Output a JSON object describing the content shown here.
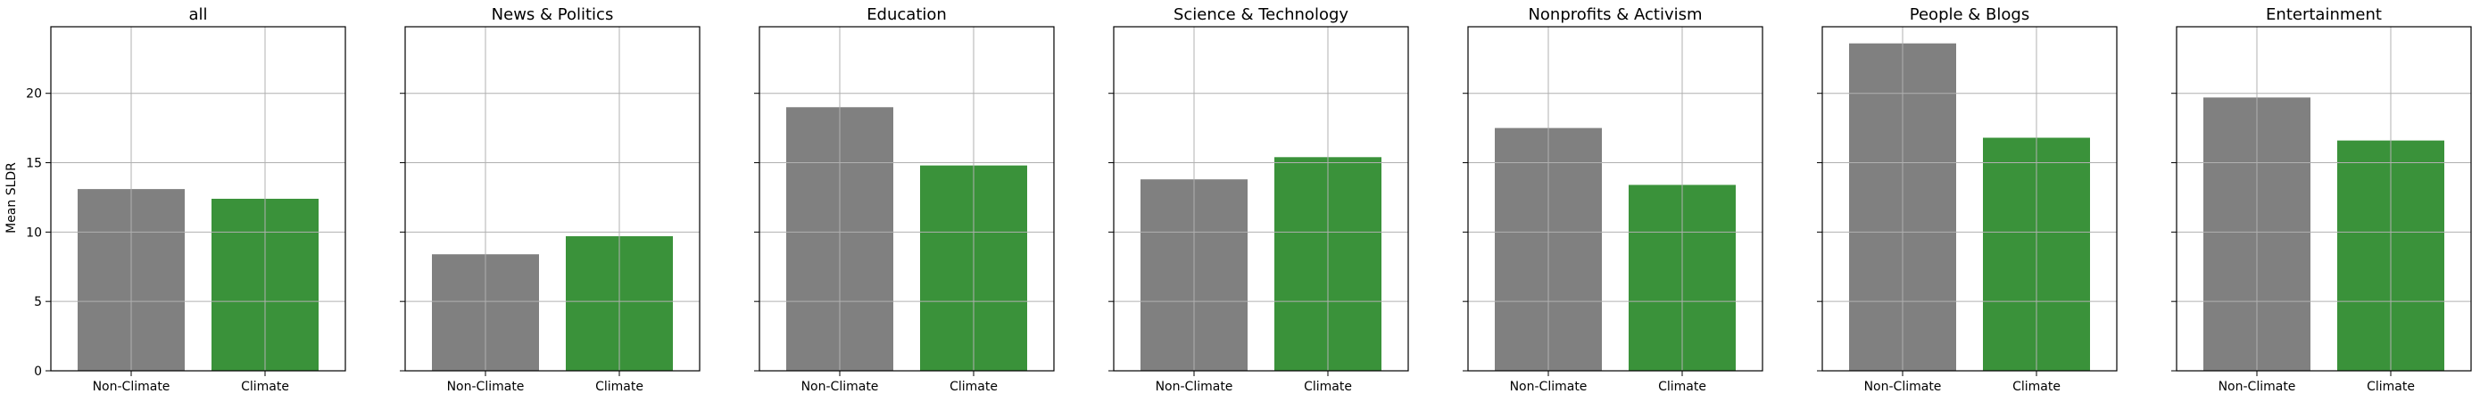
{
  "figure": {
    "ylabel": "Mean SLDR",
    "yticks": [
      "0",
      "5",
      "10",
      "15",
      "20"
    ]
  },
  "colors": {
    "non_climate": "#808080",
    "climate": "#3a923a",
    "grid": "#b0b0b0",
    "axes": "#000000"
  },
  "chart_data": [
    {
      "type": "bar",
      "title": "all",
      "categories": [
        "Non-Climate",
        "Climate"
      ],
      "values": [
        13.1,
        12.4
      ],
      "ylim": [
        0,
        24.8
      ],
      "grid": true
    },
    {
      "type": "bar",
      "title": "News & Politics",
      "categories": [
        "Non-Climate",
        "Climate"
      ],
      "values": [
        8.4,
        9.7
      ],
      "ylim": [
        0,
        24.8
      ],
      "grid": true
    },
    {
      "type": "bar",
      "title": "Education",
      "categories": [
        "Non-Climate",
        "Climate"
      ],
      "values": [
        19.0,
        14.8
      ],
      "ylim": [
        0,
        24.8
      ],
      "grid": true
    },
    {
      "type": "bar",
      "title": "Science & Technology",
      "categories": [
        "Non-Climate",
        "Climate"
      ],
      "values": [
        13.8,
        15.4
      ],
      "ylim": [
        0,
        24.8
      ],
      "grid": true
    },
    {
      "type": "bar",
      "title": "Nonprofits & Activism",
      "categories": [
        "Non-Climate",
        "Climate"
      ],
      "values": [
        17.5,
        13.4
      ],
      "ylim": [
        0,
        24.8
      ],
      "grid": true
    },
    {
      "type": "bar",
      "title": "People & Blogs",
      "categories": [
        "Non-Climate",
        "Climate"
      ],
      "values": [
        23.6,
        16.8
      ],
      "ylim": [
        0,
        24.8
      ],
      "grid": true
    },
    {
      "type": "bar",
      "title": "Entertainment",
      "categories": [
        "Non-Climate",
        "Climate"
      ],
      "values": [
        19.7,
        16.6
      ],
      "ylim": [
        0,
        24.8
      ],
      "grid": true
    }
  ]
}
